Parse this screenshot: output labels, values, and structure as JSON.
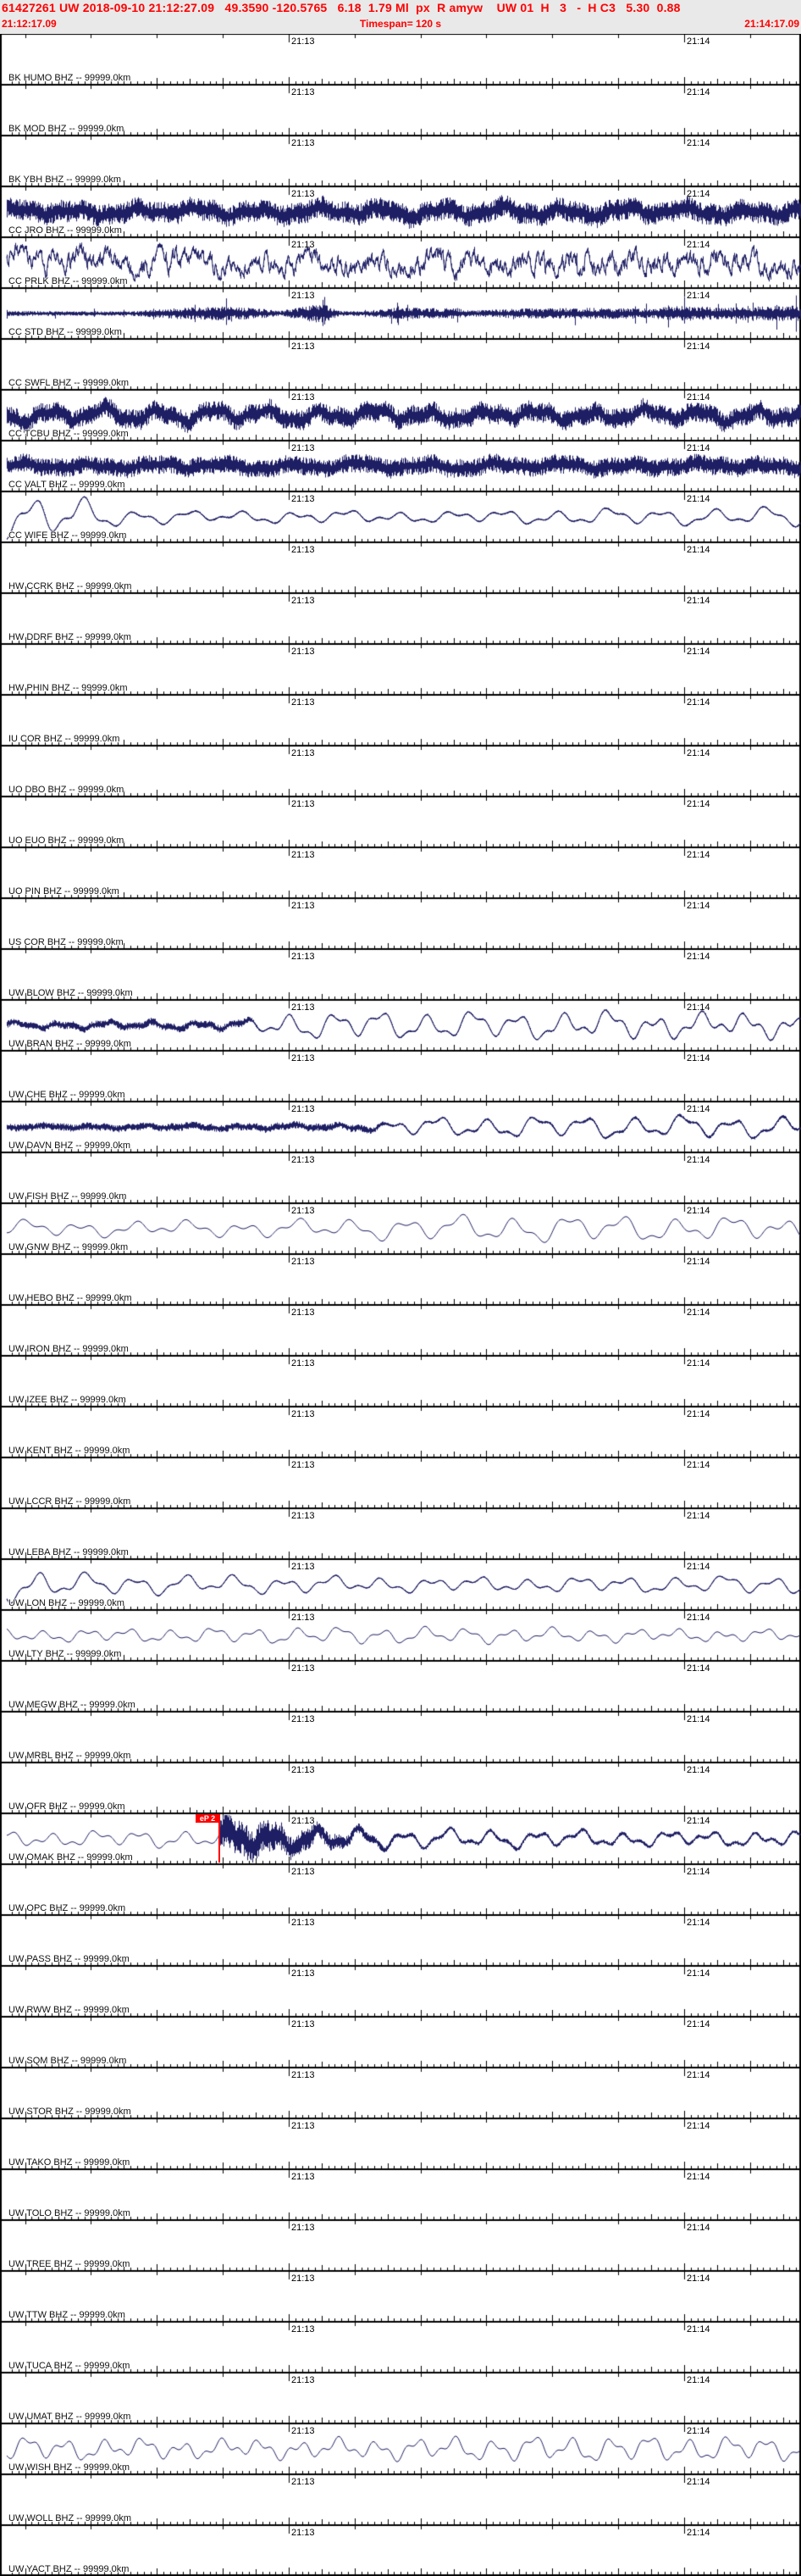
{
  "header": {
    "line1": "61427261 UW 2018-09-10 21:12:27.09   49.3590 -120.5765   6.18  1.79 Ml  px  R amyw    UW 01  H   3   -  H C3   5.30  0.88",
    "start_time": "21:12:17.09",
    "timespan": "Timespan= 120 s",
    "end_time": "21:14:17.09"
  },
  "time_axis": {
    "span_s": 120.4,
    "marks": [
      {
        "label": "21:13",
        "offset_s": 42.91
      },
      {
        "label": "21:14",
        "offset_s": 102.91
      }
    ]
  },
  "pick": {
    "phase": "eP 2",
    "station": "UW OMAK BHZ",
    "row_index": 35,
    "offset_s": 32.4
  },
  "colors": {
    "trace": "#1e1e64",
    "axis": "#000000",
    "header_text": "#ff0000",
    "pick": "#ff0000",
    "plot_bg": "#ffffff",
    "page_bg": "#e9e9e9"
  },
  "rows": [
    {
      "label": "BK HUMO BHZ -- 99999.0km",
      "net": "BK",
      "sta": "HUMO",
      "cha": "BHZ",
      "dist": "99999.0km",
      "signal": {
        "type": "flat"
      }
    },
    {
      "label": "BK MOD BHZ -- 99999.0km",
      "net": "BK",
      "sta": "MOD",
      "cha": "BHZ",
      "dist": "99999.0km",
      "signal": {
        "type": "flat"
      }
    },
    {
      "label": "BK YBH BHZ -- 99999.0km",
      "net": "BK",
      "sta": "YBH",
      "cha": "BHZ",
      "dist": "99999.0km",
      "signal": {
        "type": "flat"
      }
    },
    {
      "label": "CC JRO BHZ -- 99999.0km",
      "net": "CC",
      "sta": "JRO",
      "cha": "BHZ",
      "dist": "99999.0km",
      "signal": {
        "type": "composite",
        "seed": 11,
        "noise": {
          "amp": 13,
          "env": [
            [
              8,
              1
            ],
            [
              946,
              1
            ]
          ]
        },
        "smooth": {
          "amp": 6,
          "period": 72
        }
      }
    },
    {
      "label": "CC PRLK BHZ -- 99999.0km",
      "net": "CC",
      "sta": "PRLK",
      "cha": "BHZ",
      "dist": "99999.0km",
      "signal": {
        "type": "composite",
        "seed": 22,
        "walk": {
          "amp": 17
        },
        "noise": {
          "amp": 3,
          "env": [
            [
              8,
              1
            ],
            [
              946,
              1
            ]
          ]
        },
        "smooth": {
          "amp": 5,
          "period": 95
        }
      }
    },
    {
      "label": "CC STD BHZ -- 99999.0km",
      "net": "CC",
      "sta": "STD",
      "cha": "BHZ",
      "dist": "99999.0km",
      "signal": {
        "type": "composite",
        "seed": 33,
        "noise": {
          "amp": 3,
          "spike": 0.035,
          "env": [
            [
              8,
              1
            ],
            [
              150,
              0.8
            ],
            [
              210,
              2.2
            ],
            [
              260,
              2.8
            ],
            [
              300,
              2.2
            ],
            [
              330,
              1
            ],
            [
              380,
              4
            ],
            [
              400,
              1
            ],
            [
              430,
              1
            ],
            [
              470,
              2.4
            ],
            [
              540,
              2
            ],
            [
              555,
              1.2
            ],
            [
              620,
              2
            ],
            [
              700,
              2.2
            ],
            [
              770,
              2
            ],
            [
              800,
              3
            ],
            [
              850,
              2.4
            ],
            [
              946,
              3.2
            ]
          ]
        }
      }
    },
    {
      "label": "CC SWFL BHZ -- 99999.0km",
      "net": "CC",
      "sta": "SWFL",
      "cha": "BHZ",
      "dist": "99999.0km",
      "signal": {
        "type": "flat"
      }
    },
    {
      "label": "CC TCBU BHZ -- 99999.0km",
      "net": "CC",
      "sta": "TCBU",
      "cha": "BHZ",
      "dist": "99999.0km",
      "signal": {
        "type": "composite",
        "seed": 44,
        "noise": {
          "amp": 12,
          "env": [
            [
              8,
              1
            ],
            [
              946,
              1
            ]
          ]
        },
        "smooth": {
          "amp": 8,
          "period": 64
        }
      }
    },
    {
      "label": "CC VALT BHZ -- 99999.0km",
      "net": "CC",
      "sta": "VALT",
      "cha": "BHZ",
      "dist": "99999.0km",
      "signal": {
        "type": "composite",
        "seed": 55,
        "noise": {
          "amp": 11,
          "env": [
            [
              8,
              1
            ],
            [
              946,
              1
            ]
          ]
        },
        "smooth": {
          "amp": 4,
          "period": 80
        }
      }
    },
    {
      "label": "CC WIFE BHZ -- 99999.0km",
      "net": "CC",
      "sta": "WIFE",
      "cha": "BHZ",
      "dist": "99999.0km",
      "signal": {
        "type": "composite",
        "seed": 66,
        "noise": {
          "amp": 1.2,
          "env": [
            [
              8,
              1
            ],
            [
              946,
              1
            ]
          ]
        },
        "smooth": {
          "amp": 9,
          "period": 62,
          "env": [
            [
              8,
              2.3
            ],
            [
              60,
              2.6
            ],
            [
              110,
              2
            ],
            [
              150,
              1
            ],
            [
              250,
              0.8
            ],
            [
              350,
              1
            ],
            [
              450,
              1
            ],
            [
              500,
              0.9
            ],
            [
              600,
              1
            ],
            [
              700,
              1.1
            ],
            [
              800,
              1
            ],
            [
              946,
              1.2
            ]
          ]
        }
      }
    },
    {
      "label": "HW CCRK BHZ -- 99999.0km",
      "net": "HW",
      "sta": "CCRK",
      "cha": "BHZ",
      "dist": "99999.0km",
      "signal": {
        "type": "flat"
      }
    },
    {
      "label": "HW DDRF BHZ -- 99999.0km",
      "net": "HW",
      "sta": "DDRF",
      "cha": "BHZ",
      "dist": "99999.0km",
      "signal": {
        "type": "flat"
      }
    },
    {
      "label": "HW PHIN BHZ -- 99999.0km",
      "net": "HW",
      "sta": "PHIN",
      "cha": "BHZ",
      "dist": "99999.0km",
      "signal": {
        "type": "flat"
      }
    },
    {
      "label": "IU COR BHZ -- 99999.0km",
      "net": "IU",
      "sta": "COR",
      "cha": "BHZ",
      "dist": "99999.0km",
      "signal": {
        "type": "flat"
      }
    },
    {
      "label": "UO DBO BHZ -- 99999.0km",
      "net": "UO",
      "sta": "DBO",
      "cha": "BHZ",
      "dist": "99999.0km",
      "signal": {
        "type": "flat"
      }
    },
    {
      "label": "UO EUO BHZ -- 99999.0km",
      "net": "UO",
      "sta": "EUO",
      "cha": "BHZ",
      "dist": "99999.0km",
      "signal": {
        "type": "flat"
      }
    },
    {
      "label": "UO PIN BHZ -- 99999.0km",
      "net": "UO",
      "sta": "PIN",
      "cha": "BHZ",
      "dist": "99999.0km",
      "signal": {
        "type": "flat"
      }
    },
    {
      "label": "US COR BHZ -- 99999.0km",
      "net": "US",
      "sta": "COR",
      "cha": "BHZ",
      "dist": "99999.0km",
      "signal": {
        "type": "flat"
      }
    },
    {
      "label": "UW BLOW BHZ -- 99999.0km",
      "net": "UW",
      "sta": "BLOW",
      "cha": "BHZ",
      "dist": "99999.0km",
      "signal": {
        "type": "flat"
      }
    },
    {
      "label": "UW BRAN BHZ -- 99999.0km",
      "net": "UW",
      "sta": "BRAN",
      "cha": "BHZ",
      "dist": "99999.0km",
      "signal": {
        "type": "composite",
        "seed": 77,
        "noise": {
          "amp": 4.5,
          "env": [
            [
              8,
              1
            ],
            [
              285,
              1
            ],
            [
              310,
              0.25
            ],
            [
              946,
              0.3
            ]
          ]
        },
        "smooth": {
          "amp": 15,
          "period": 54,
          "env": [
            [
              8,
              0.3
            ],
            [
              285,
              0.35
            ],
            [
              330,
              1
            ],
            [
              600,
              1
            ],
            [
              700,
              1.2
            ],
            [
              946,
              1.2
            ]
          ]
        }
      }
    },
    {
      "label": "UW CHE BHZ -- 99999.0km",
      "net": "UW",
      "sta": "CHE",
      "cha": "BHZ",
      "dist": "99999.0km",
      "signal": {
        "type": "flat"
      }
    },
    {
      "label": "UW DAVN BHZ -- 99999.0km",
      "net": "UW",
      "sta": "DAVN",
      "cha": "BHZ",
      "dist": "99999.0km",
      "signal": {
        "type": "composite",
        "seed": 88,
        "noise": {
          "amp": 4.5,
          "env": [
            [
              8,
              1
            ],
            [
              430,
              1
            ],
            [
              465,
              0.35
            ],
            [
              946,
              0.45
            ]
          ]
        },
        "smooth": {
          "amp": 12,
          "period": 58,
          "env": [
            [
              8,
              0.12
            ],
            [
              430,
              0.3
            ],
            [
              480,
              1
            ],
            [
              946,
              1.05
            ]
          ]
        }
      }
    },
    {
      "label": "UW FISH BHZ -- 99999.0km",
      "net": "UW",
      "sta": "FISH",
      "cha": "BHZ",
      "dist": "99999.0km",
      "signal": {
        "type": "flat"
      }
    },
    {
      "label": "UW GNW BHZ -- 99999.0km",
      "net": "UW",
      "sta": "GNW",
      "cha": "BHZ",
      "dist": "99999.0km",
      "signal": {
        "type": "composite",
        "seed": 99,
        "smooth": {
          "amp": 12,
          "period": 64,
          "env": [
            [
              8,
              0.9
            ],
            [
              400,
              1
            ],
            [
              550,
              1.2
            ],
            [
              700,
              1.25
            ],
            [
              946,
              1.3
            ]
          ]
        }
      }
    },
    {
      "label": "UW HEBO BHZ -- 99999.0km",
      "net": "UW",
      "sta": "HEBO",
      "cha": "BHZ",
      "dist": "99999.0km",
      "signal": {
        "type": "flat"
      }
    },
    {
      "label": "UW IRON BHZ -- 99999.0km",
      "net": "UW",
      "sta": "IRON",
      "cha": "BHZ",
      "dist": "99999.0km",
      "signal": {
        "type": "flat"
      }
    },
    {
      "label": "UW IZEE BHZ -- 99999.0km",
      "net": "UW",
      "sta": "IZEE",
      "cha": "BHZ",
      "dist": "99999.0km",
      "signal": {
        "type": "flat"
      }
    },
    {
      "label": "UW KENT BHZ -- 99999.0km",
      "net": "UW",
      "sta": "KENT",
      "cha": "BHZ",
      "dist": "99999.0km",
      "signal": {
        "type": "flat"
      }
    },
    {
      "label": "UW LCCR BHZ -- 99999.0km",
      "net": "UW",
      "sta": "LCCR",
      "cha": "BHZ",
      "dist": "99999.0km",
      "signal": {
        "type": "flat"
      }
    },
    {
      "label": "UW LEBA BHZ -- 99999.0km",
      "net": "UW",
      "sta": "LEBA",
      "cha": "BHZ",
      "dist": "99999.0km",
      "signal": {
        "type": "flat"
      }
    },
    {
      "label": "UW LON BHZ -- 99999.0km",
      "net": "UW",
      "sta": "LON",
      "cha": "BHZ",
      "dist": "99999.0km",
      "signal": {
        "type": "composite",
        "seed": 111,
        "noise": {
          "amp": 1,
          "env": [
            [
              8,
              1
            ],
            [
              946,
              1
            ]
          ]
        },
        "smooth": {
          "amp": 10,
          "period": 58,
          "env": [
            [
              8,
              1.9
            ],
            [
              50,
              1.6
            ],
            [
              110,
              1.1
            ],
            [
              946,
              1
            ]
          ]
        }
      }
    },
    {
      "label": "UW LTY BHZ -- 99999.0km",
      "net": "UW",
      "sta": "LTY",
      "cha": "BHZ",
      "dist": "99999.0km",
      "signal": {
        "type": "composite",
        "seed": 122,
        "smooth": {
          "amp": 9,
          "period": 50,
          "env": [
            [
              8,
              1
            ],
            [
              946,
              1
            ]
          ]
        }
      }
    },
    {
      "label": "UW MEGW BHZ -- 99999.0km",
      "net": "UW",
      "sta": "MEGW",
      "cha": "BHZ",
      "dist": "99999.0km",
      "signal": {
        "type": "flat"
      }
    },
    {
      "label": "UW MRBL BHZ -- 99999.0km",
      "net": "UW",
      "sta": "MRBL",
      "cha": "BHZ",
      "dist": "99999.0km",
      "signal": {
        "type": "flat"
      }
    },
    {
      "label": "UW OFR BHZ -- 99999.0km",
      "net": "UW",
      "sta": "OFR",
      "cha": "BHZ",
      "dist": "99999.0km",
      "signal": {
        "type": "flat"
      }
    },
    {
      "label": "UW OMAK BHZ -- 99999.0km",
      "net": "UW",
      "sta": "OMAK",
      "cha": "BHZ",
      "dist": "99999.0km",
      "signal": {
        "type": "composite",
        "seed": 133,
        "noise": {
          "amp": 22,
          "env": [
            [
              8,
              0
            ],
            [
              258,
              0
            ],
            [
              260,
              1
            ],
            [
              300,
              0.95
            ],
            [
              340,
              0.7
            ],
            [
              390,
              0.45
            ],
            [
              430,
              0.25
            ],
            [
              470,
              0.12
            ],
            [
              946,
              0.1
            ]
          ]
        },
        "smooth": {
          "amp": 11,
          "period": 52,
          "env": [
            [
              8,
              1
            ],
            [
              946,
              1
            ]
          ]
        }
      }
    },
    {
      "label": "UW OPC BHZ -- 99999.0km",
      "net": "UW",
      "sta": "OPC",
      "cha": "BHZ",
      "dist": "99999.0km",
      "signal": {
        "type": "flat"
      }
    },
    {
      "label": "UW PASS BHZ -- 99999.0km",
      "net": "UW",
      "sta": "PASS",
      "cha": "BHZ",
      "dist": "99999.0km",
      "signal": {
        "type": "flat"
      }
    },
    {
      "label": "UW RWW BHZ -- 99999.0km",
      "net": "UW",
      "sta": "RWW",
      "cha": "BHZ",
      "dist": "99999.0km",
      "signal": {
        "type": "flat"
      }
    },
    {
      "label": "UW SQM BHZ -- 99999.0km",
      "net": "UW",
      "sta": "SQM",
      "cha": "BHZ",
      "dist": "99999.0km",
      "signal": {
        "type": "flat"
      }
    },
    {
      "label": "UW STOR BHZ -- 99999.0km",
      "net": "UW",
      "sta": "STOR",
      "cha": "BHZ",
      "dist": "99999.0km",
      "signal": {
        "type": "flat"
      }
    },
    {
      "label": "UW TAKO BHZ -- 99999.0km",
      "net": "UW",
      "sta": "TAKO",
      "cha": "BHZ",
      "dist": "99999.0km",
      "signal": {
        "type": "flat"
      }
    },
    {
      "label": "UW TOLO BHZ -- 99999.0km",
      "net": "UW",
      "sta": "TOLO",
      "cha": "BHZ",
      "dist": "99999.0km",
      "signal": {
        "type": "flat"
      }
    },
    {
      "label": "UW TREE BHZ -- 99999.0km",
      "net": "UW",
      "sta": "TREE",
      "cha": "BHZ",
      "dist": "99999.0km",
      "signal": {
        "type": "flat"
      }
    },
    {
      "label": "UW TTW BHZ -- 99999.0km",
      "net": "UW",
      "sta": "TTW",
      "cha": "BHZ",
      "dist": "99999.0km",
      "signal": {
        "type": "flat"
      }
    },
    {
      "label": "UW TUCA BHZ -- 99999.0km",
      "net": "UW",
      "sta": "TUCA",
      "cha": "BHZ",
      "dist": "99999.0km",
      "signal": {
        "type": "flat"
      }
    },
    {
      "label": "UW UMAT BHZ -- 99999.0km",
      "net": "UW",
      "sta": "UMAT",
      "cha": "BHZ",
      "dist": "99999.0km",
      "signal": {
        "type": "flat"
      }
    },
    {
      "label": "UW WISH BHZ -- 99999.0km",
      "net": "UW",
      "sta": "WISH",
      "cha": "BHZ",
      "dist": "99999.0km",
      "signal": {
        "type": "composite",
        "seed": 144,
        "smooth": {
          "amp": 14,
          "period": 46,
          "env": [
            [
              8,
              1
            ],
            [
              946,
              1
            ]
          ]
        }
      }
    },
    {
      "label": "UW WOLL BHZ -- 99999.0km",
      "net": "UW",
      "sta": "WOLL",
      "cha": "BHZ",
      "dist": "99999.0km",
      "signal": {
        "type": "flat"
      }
    },
    {
      "label": "UW YACT BHZ -- 99999.0km",
      "net": "UW",
      "sta": "YACT",
      "cha": "BHZ",
      "dist": "99999.0km",
      "signal": {
        "type": "flat"
      }
    }
  ]
}
